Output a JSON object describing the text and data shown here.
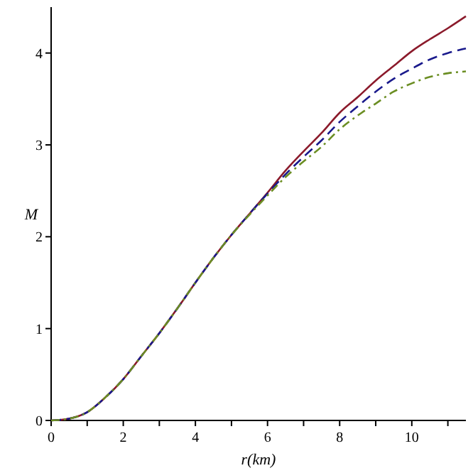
{
  "chart_data": {
    "type": "line",
    "xlabel": "r(km)",
    "ylabel": "M",
    "xlim": [
      0,
      11.5
    ],
    "ylim": [
      0,
      4.5
    ],
    "xticks": [
      0,
      {
        "value": 1,
        "label": null
      },
      2,
      {
        "value": 3,
        "label": null
      },
      4,
      {
        "value": 5,
        "label": null
      },
      6,
      {
        "value": 7,
        "label": null
      },
      8,
      {
        "value": 9,
        "label": null
      },
      10,
      {
        "value": 11,
        "label": null
      }
    ],
    "yticks": [
      0,
      1,
      2,
      3,
      4
    ],
    "grid": false,
    "marker": "none",
    "series": [
      {
        "color": "#8b1a2b",
        "line_style": "solid",
        "x": [
          0,
          0.5,
          1,
          1.5,
          2,
          2.5,
          3,
          3.5,
          4,
          4.5,
          5,
          5.5,
          6,
          6.5,
          7,
          7.5,
          8,
          8.5,
          9,
          9.5,
          10,
          10.5,
          11,
          11.5
        ],
        "values": [
          0,
          0.02,
          0.09,
          0.25,
          0.45,
          0.7,
          0.95,
          1.22,
          1.5,
          1.77,
          2.02,
          2.25,
          2.48,
          2.72,
          2.93,
          3.13,
          3.35,
          3.52,
          3.7,
          3.86,
          4.02,
          4.15,
          4.27,
          4.4
        ]
      },
      {
        "color": "#1a1a8c",
        "line_style": "dashed",
        "x": [
          0,
          0.5,
          1,
          1.5,
          2,
          2.5,
          3,
          3.5,
          4,
          4.5,
          5,
          5.5,
          6,
          6.5,
          7,
          7.5,
          8,
          8.5,
          9,
          9.5,
          10,
          10.5,
          11,
          11.5
        ],
        "values": [
          0,
          0.02,
          0.09,
          0.25,
          0.45,
          0.7,
          0.95,
          1.22,
          1.5,
          1.77,
          2.02,
          2.25,
          2.47,
          2.68,
          2.87,
          3.05,
          3.25,
          3.42,
          3.58,
          3.72,
          3.83,
          3.93,
          4.0,
          4.05
        ]
      },
      {
        "color": "#6b8e23",
        "line_style": "dashdot",
        "x": [
          0,
          0.5,
          1,
          1.5,
          2,
          2.5,
          3,
          3.5,
          4,
          4.5,
          5,
          5.5,
          6,
          6.5,
          7,
          7.5,
          8,
          8.5,
          9,
          9.5,
          10,
          10.5,
          11,
          11.5
        ],
        "values": [
          0,
          0.02,
          0.09,
          0.25,
          0.45,
          0.7,
          0.95,
          1.22,
          1.5,
          1.77,
          2.02,
          2.24,
          2.45,
          2.65,
          2.82,
          2.98,
          3.17,
          3.32,
          3.45,
          3.58,
          3.67,
          3.74,
          3.78,
          3.8
        ]
      }
    ]
  }
}
